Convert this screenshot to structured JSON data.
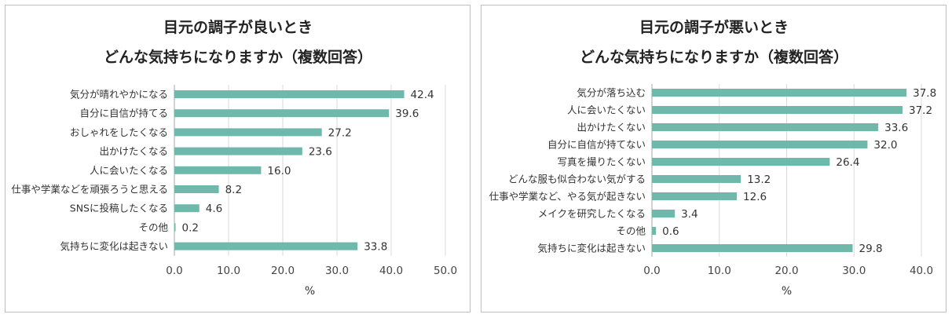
{
  "chart_data": [
    {
      "type": "bar",
      "orientation": "horizontal",
      "title": "目元の調子が良いとき",
      "subtitle": "どんな気持ちになりますか（複数回答）",
      "categories": [
        "気分が晴れやかになる",
        "自分に自信が持てる",
        "おしゃれをしたくなる",
        "出かけたくなる",
        "人に会いたくなる",
        "仕事や学業などを頑張ろうと思える",
        "SNSに投稿したくなる",
        "その他",
        "気持ちに変化は起きない"
      ],
      "values": [
        42.4,
        39.6,
        27.2,
        23.6,
        16.0,
        8.2,
        4.6,
        0.2,
        33.8
      ],
      "value_labels": [
        "42.4",
        "39.6",
        "27.2",
        "23.6",
        "16.0",
        "8.2",
        "4.6",
        "0.2",
        "33.8"
      ],
      "xlim": [
        0,
        50
      ],
      "xticks": [
        "0.0",
        "10.0",
        "20.0",
        "30.0",
        "40.0",
        "50.0"
      ],
      "xlabel": "%",
      "grid": true,
      "bar_color": "#6fb8ac"
    },
    {
      "type": "bar",
      "orientation": "horizontal",
      "title": "目元の調子が悪いとき",
      "subtitle": "どんな気持ちになりますか（複数回答）",
      "categories": [
        "気分が落ち込む",
        "人に会いたくない",
        "出かけたくない",
        "自分に自信が持てない",
        "写真を撮りたくない",
        "どんな服も似合わない気がする",
        "仕事や学業など、やる気が起きない",
        "メイクを研究したくなる",
        "その他",
        "気持ちに変化は起きない"
      ],
      "values": [
        37.8,
        37.2,
        33.6,
        32.0,
        26.4,
        13.2,
        12.6,
        3.4,
        0.6,
        29.8
      ],
      "value_labels": [
        "37.8",
        "37.2",
        "33.6",
        "32.0",
        "26.4",
        "13.2",
        "12.6",
        "3.4",
        "0.6",
        "29.8"
      ],
      "xlim": [
        0,
        40
      ],
      "xticks": [
        "0.0",
        "10.0",
        "20.0",
        "30.0",
        "40.0"
      ],
      "xlabel": "%",
      "grid": true,
      "bar_color": "#6fb8ac"
    }
  ]
}
